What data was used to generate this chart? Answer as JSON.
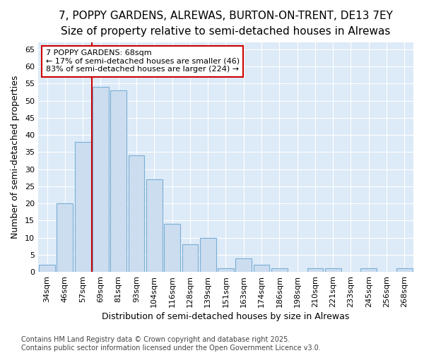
{
  "title": "7, POPPY GARDENS, ALREWAS, BURTON-ON-TRENT, DE13 7EY",
  "subtitle": "Size of property relative to semi-detached houses in Alrewas",
  "xlabel": "Distribution of semi-detached houses by size in Alrewas",
  "ylabel": "Number of semi-detached properties",
  "categories": [
    "34sqm",
    "46sqm",
    "57sqm",
    "69sqm",
    "81sqm",
    "93sqm",
    "104sqm",
    "116sqm",
    "128sqm",
    "139sqm",
    "151sqm",
    "163sqm",
    "174sqm",
    "186sqm",
    "198sqm",
    "210sqm",
    "221sqm",
    "233sqm",
    "245sqm",
    "256sqm",
    "268sqm"
  ],
  "values": [
    2,
    20,
    38,
    54,
    53,
    34,
    27,
    14,
    8,
    10,
    1,
    4,
    2,
    1,
    0,
    1,
    1,
    0,
    1,
    0,
    1
  ],
  "bar_color": "#ccddf0",
  "bar_edge_color": "#7aafd4",
  "vline_color": "#cc0000",
  "vline_index": 3,
  "annotation_line1": "7 POPPY GARDENS: 68sqm",
  "annotation_line2": "← 17% of semi-detached houses are smaller (46)",
  "annotation_line3": "83% of semi-detached houses are larger (224) →",
  "annotation_box_color": "#ffffff",
  "annotation_edge_color": "#cc0000",
  "ylim_max": 67,
  "yticks": [
    0,
    5,
    10,
    15,
    20,
    25,
    30,
    35,
    40,
    45,
    50,
    55,
    60,
    65
  ],
  "footnote": "Contains HM Land Registry data © Crown copyright and database right 2025.\nContains public sector information licensed under the Open Government Licence v3.0.",
  "fig_bg_color": "#ffffff",
  "plot_bg_color": "#ddeaf7",
  "grid_color": "#ffffff",
  "title_fontsize": 11,
  "subtitle_fontsize": 10,
  "label_fontsize": 9,
  "tick_fontsize": 8,
  "annot_fontsize": 8,
  "footnote_fontsize": 7
}
